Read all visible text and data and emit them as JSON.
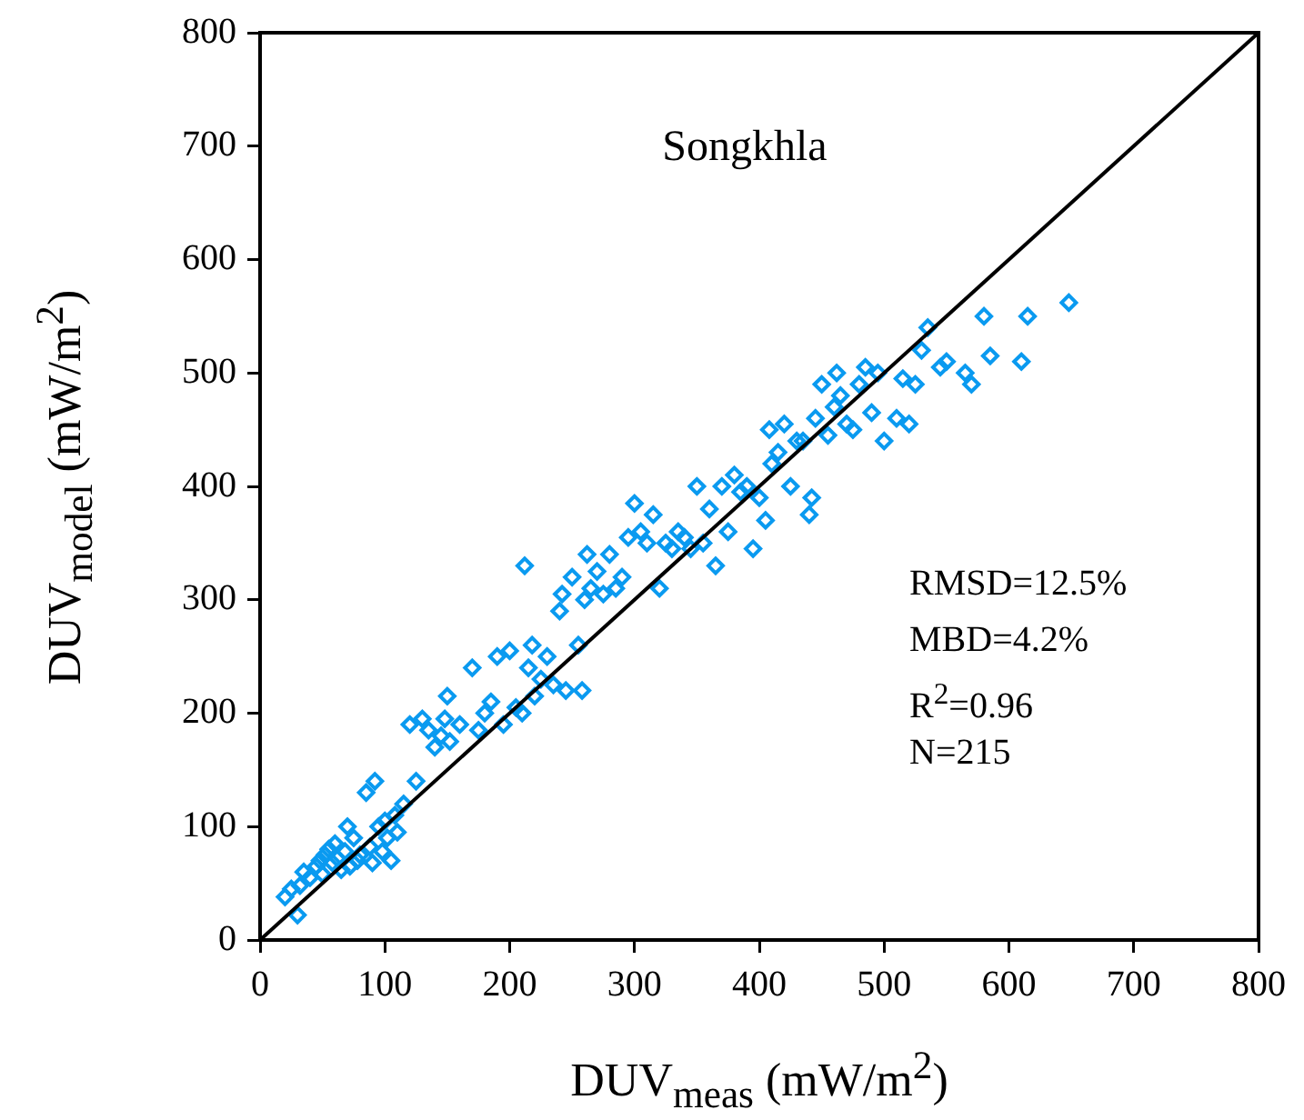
{
  "chart_data": {
    "type": "scatter",
    "xlabel": "DUV$_{meas}$ (mW/m$^{2}$)",
    "ylabel": "DUV$_{model}$ (mW/m$^{2}$)",
    "annotations": [
      "Songkhla",
      "RMSD=12.5%",
      "MBD=4.2%",
      "R$^{2}$=0.96",
      "N=215"
    ],
    "xlim": [
      0,
      800
    ],
    "ylim": [
      0,
      800
    ],
    "xticks": [
      0,
      100,
      200,
      300,
      400,
      500,
      600,
      700,
      800
    ],
    "yticks": [
      0,
      100,
      200,
      300,
      400,
      500,
      600,
      700,
      800
    ],
    "grid": false,
    "legend": false,
    "marker": "diamond",
    "series": [
      {
        "color": "#0a9af0",
        "x": [
          20,
          25,
          30,
          32,
          35,
          40,
          45,
          48,
          50,
          52,
          55,
          58,
          60,
          62,
          65,
          68,
          70,
          72,
          75,
          78,
          80,
          85,
          88,
          90,
          92,
          95,
          98,
          100,
          102,
          105,
          108,
          110,
          115,
          120,
          125,
          130,
          135,
          140,
          145,
          148,
          150,
          152,
          160,
          170,
          175,
          180,
          185,
          190,
          195,
          200,
          205,
          210,
          212,
          215,
          218,
          220,
          225,
          230,
          235,
          240,
          242,
          245,
          250,
          255,
          258,
          260,
          262,
          265,
          270,
          275,
          280,
          285,
          290,
          295,
          300,
          305,
          310,
          315,
          320,
          325,
          330,
          335,
          340,
          345,
          350,
          355,
          360,
          365,
          370,
          375,
          380,
          385,
          390,
          395,
          400,
          405,
          408,
          410,
          415,
          420,
          425,
          430,
          435,
          440,
          442,
          445,
          450,
          455,
          460,
          462,
          465,
          470,
          475,
          480,
          485,
          490,
          495,
          500,
          510,
          515,
          520,
          525,
          530,
          535,
          545,
          550,
          565,
          570,
          580,
          585,
          610,
          615,
          648
        ],
        "values": [
          38,
          45,
          22,
          48,
          60,
          55,
          65,
          70,
          58,
          75,
          80,
          68,
          85,
          72,
          62,
          78,
          100,
          65,
          90,
          70,
          75,
          130,
          82,
          68,
          140,
          100,
          78,
          105,
          90,
          70,
          110,
          95,
          120,
          190,
          140,
          195,
          185,
          170,
          180,
          195,
          215,
          175,
          190,
          240,
          185,
          200,
          210,
          250,
          190,
          255,
          205,
          200,
          330,
          240,
          260,
          215,
          230,
          250,
          225,
          290,
          305,
          220,
          320,
          260,
          220,
          300,
          340,
          310,
          325,
          305,
          340,
          310,
          320,
          355,
          385,
          360,
          350,
          375,
          310,
          350,
          345,
          360,
          355,
          345,
          400,
          350,
          380,
          330,
          400,
          360,
          410,
          395,
          400,
          345,
          390,
          370,
          450,
          420,
          430,
          455,
          400,
          440,
          440,
          375,
          390,
          460,
          490,
          445,
          470,
          500,
          480,
          455,
          450,
          490,
          505,
          465,
          500,
          440,
          460,
          495,
          455,
          490,
          520,
          540,
          505,
          510,
          500,
          490,
          550,
          515,
          510,
          550,
          562
        ]
      },
      {
        "type": "line",
        "color": "#000000",
        "marker": "none",
        "x": [
          0,
          800
        ],
        "values": [
          0,
          800
        ]
      }
    ]
  }
}
